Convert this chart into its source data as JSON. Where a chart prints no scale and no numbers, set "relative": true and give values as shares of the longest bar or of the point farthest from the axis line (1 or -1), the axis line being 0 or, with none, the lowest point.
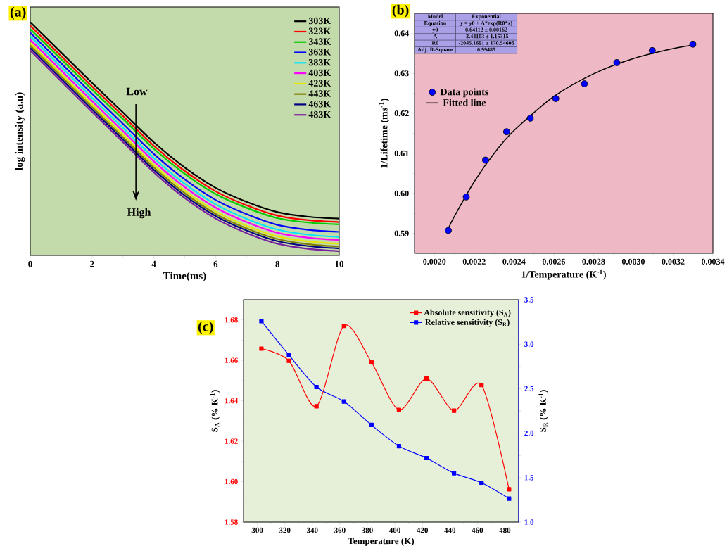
{
  "chart_data": [
    {
      "type": "line",
      "title": "(a)",
      "xlabel": "Time(ms)",
      "ylabel": "log intensity (a.u)",
      "relative": true,
      "x": [
        0,
        1,
        2,
        3,
        4,
        5,
        6,
        7,
        8,
        9,
        10
      ],
      "xlim": [
        0,
        10
      ],
      "xticks": [
        0,
        2,
        4,
        6,
        8,
        10
      ],
      "legend": "top right",
      "annotations": [
        "Low",
        "High"
      ],
      "series": [
        {
          "name": "303K",
          "color": "#000000",
          "values": [
            1.0,
            0.87,
            0.74,
            0.613,
            0.485,
            0.377,
            0.29,
            0.23,
            0.186,
            0.166,
            0.158
          ]
        },
        {
          "name": "323K",
          "color": "#ff0000",
          "values": [
            0.985,
            0.855,
            0.725,
            0.598,
            0.47,
            0.362,
            0.275,
            0.215,
            0.171,
            0.151,
            0.143
          ]
        },
        {
          "name": "343K",
          "color": "#00cc00",
          "values": [
            0.97,
            0.841,
            0.711,
            0.585,
            0.457,
            0.35,
            0.263,
            0.204,
            0.16,
            0.141,
            0.133
          ]
        },
        {
          "name": "363K",
          "color": "#0000ff",
          "values": [
            0.955,
            0.824,
            0.693,
            0.564,
            0.435,
            0.326,
            0.238,
            0.177,
            0.131,
            0.11,
            0.101
          ]
        },
        {
          "name": "383K",
          "color": "#00e5ff",
          "values": [
            0.94,
            0.808,
            0.676,
            0.547,
            0.417,
            0.307,
            0.219,
            0.157,
            0.111,
            0.089,
            0.079
          ]
        },
        {
          "name": "403K",
          "color": "#ff00ff",
          "values": [
            0.925,
            0.793,
            0.662,
            0.533,
            0.403,
            0.293,
            0.205,
            0.143,
            0.097,
            0.076,
            0.066
          ]
        },
        {
          "name": "423K",
          "color": "#e6e600",
          "values": [
            0.91,
            0.778,
            0.646,
            0.518,
            0.388,
            0.278,
            0.189,
            0.127,
            0.082,
            0.06,
            0.05
          ]
        },
        {
          "name": "443K",
          "color": "#808000",
          "values": [
            0.9,
            0.768,
            0.636,
            0.507,
            0.377,
            0.267,
            0.178,
            0.116,
            0.07,
            0.048,
            0.038
          ]
        },
        {
          "name": "463K",
          "color": "#000080",
          "values": [
            0.889,
            0.757,
            0.626,
            0.497,
            0.367,
            0.257,
            0.169,
            0.107,
            0.061,
            0.04,
            0.03
          ]
        },
        {
          "name": "483K",
          "color": "#7b1fa2",
          "values": [
            0.879,
            0.747,
            0.615,
            0.486,
            0.356,
            0.246,
            0.158,
            0.096,
            0.05,
            0.028,
            0.018
          ]
        }
      ]
    },
    {
      "type": "scatter",
      "title": "(b)",
      "xlabel": "1/Temperature (K$^{-1}$)",
      "ylabel": "1/Lifetime (ms$^{-1}$)",
      "xlim": [
        0.0019,
        0.0034
      ],
      "ylim": [
        0.585,
        0.645
      ],
      "xticks": [
        {
          "value": 0.002,
          "label": "0.0020"
        },
        {
          "value": 0.0022,
          "label": "0.0022"
        },
        {
          "value": 0.0024,
          "label": "0.0024"
        },
        {
          "value": 0.0026,
          "label": "0.0026"
        },
        {
          "value": 0.0028,
          "label": "0.0028"
        },
        {
          "value": 0.003,
          "label": "0.0030"
        },
        {
          "value": 0.0032,
          "label": "0.0032"
        },
        {
          "value": 0.0034,
          "label": "0.0034"
        }
      ],
      "yticks": [
        0.59,
        {
          "value": 0.6,
          "label": "0.60"
        },
        0.61,
        0.62,
        0.63,
        0.64
      ],
      "legend": "top left",
      "annotations": [
        "Model",
        "Exponential",
        "Equation",
        "y = y0 + A*exp(R0*x)",
        "y0",
        "0.64112 ± 0.00162",
        "A",
        "-3.44103 ± 1.15315",
        "R0",
        "-2045.1691 ± 170.54606",
        "Adj. R-Square",
        "0.99485"
      ],
      "series": [
        {
          "name": "Data points",
          "color": "#0000ff",
          "marker": "circle",
          "x": [
            0.00207,
            0.00216,
            0.002257,
            0.002363,
            0.002482,
            0.00261,
            0.002754,
            0.002917,
            0.003095,
            0.003299
          ],
          "values": [
            0.5907,
            0.5991,
            0.6083,
            0.6154,
            0.6188,
            0.6237,
            0.6274,
            0.6327,
            0.6357,
            0.6373
          ]
        },
        {
          "name": "Fitted line",
          "type": "line",
          "color": "#000000",
          "x": [
            0.00207,
            0.0021,
            0.0022,
            0.0023,
            0.0024,
            0.0026,
            0.0028,
            0.003,
            0.0032,
            0.0033
          ],
          "values": [
            0.5912,
            0.5942,
            0.6029,
            0.61,
            0.6157,
            0.6242,
            0.6299,
            0.6337,
            0.6362,
            0.6371
          ]
        }
      ]
    },
    {
      "type": "line",
      "title": "(c)",
      "xlabel": "Temperature (K)",
      "ylabel": "S$_{A}$ (% K$^{-1}$)",
      "y2label": "S$_{R}$ (% K$^{-1}$)",
      "x": [
        303,
        323,
        343,
        363,
        383,
        403,
        423,
        443,
        463,
        483
      ],
      "xlim": [
        290,
        490
      ],
      "xticks": [
        300,
        320,
        340,
        360,
        380,
        400,
        420,
        440,
        460,
        480
      ],
      "ylim": [
        1.58,
        1.69
      ],
      "yticks": [
        1.58,
        {
          "value": 1.6,
          "label": "1.60"
        },
        1.62,
        1.64,
        1.66,
        1.68
      ],
      "y2lim": [
        1.0,
        3.5
      ],
      "y2ticks": [
        {
          "value": 1,
          "label": "1.0"
        },
        1.5,
        {
          "value": 2,
          "label": "2.0"
        },
        2.5,
        {
          "value": 3,
          "label": "3.0"
        },
        3.5
      ],
      "marker": "square",
      "legend": "top right",
      "series": [
        {
          "name": "Absolute sensitivity (S$_{A}$)",
          "color": "#ff0000",
          "values": [
            1.6658,
            1.6598,
            1.6373,
            1.6771,
            1.6591,
            1.6355,
            1.651,
            1.6351,
            1.6478,
            1.5962
          ]
        },
        {
          "name": "Relative sensitivity (S$_{R}$)",
          "color": "#0000ff",
          "axis": "y2",
          "values": [
            3.26,
            2.878,
            2.519,
            2.356,
            2.092,
            1.854,
            1.72,
            1.549,
            1.443,
            1.264
          ]
        }
      ]
    }
  ]
}
